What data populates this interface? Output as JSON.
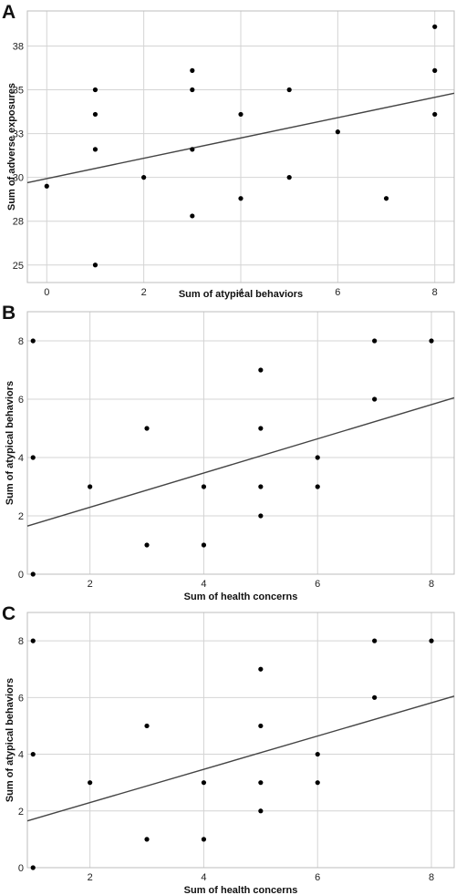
{
  "chart_data": [
    {
      "type": "scatter",
      "panel_label": "A",
      "xlabel": "Sum of atypical behaviors",
      "ylabel": "Sum of adverse exposures",
      "xlim": [
        -0.4,
        8.4
      ],
      "ylim": [
        24,
        39.5
      ],
      "xticks": [
        0,
        2,
        4,
        6,
        8
      ],
      "yticks": [
        25,
        27.5,
        30,
        32.5,
        35,
        37.5
      ],
      "yticklabels": [
        "25",
        "28",
        "30",
        "33",
        "35",
        "38"
      ],
      "grid": "vertical and horizontal",
      "points": [
        {
          "x": 0,
          "y": 29.5
        },
        {
          "x": 1,
          "y": 35
        },
        {
          "x": 1,
          "y": 33.6
        },
        {
          "x": 1,
          "y": 31.6
        },
        {
          "x": 1,
          "y": 25
        },
        {
          "x": 2,
          "y": 30
        },
        {
          "x": 3,
          "y": 36.1
        },
        {
          "x": 3,
          "y": 35
        },
        {
          "x": 3,
          "y": 31.6
        },
        {
          "x": 3,
          "y": 27.8
        },
        {
          "x": 4,
          "y": 33.6
        },
        {
          "x": 4,
          "y": 28.8
        },
        {
          "x": 5,
          "y": 35
        },
        {
          "x": 5,
          "y": 30
        },
        {
          "x": 6,
          "y": 32.6
        },
        {
          "x": 7,
          "y": 28.8
        },
        {
          "x": 8,
          "y": 38.6
        },
        {
          "x": 8,
          "y": 36.1
        },
        {
          "x": 8,
          "y": 33.6
        }
      ],
      "fit_line": {
        "x": [
          -0.4,
          8.4
        ],
        "y": [
          29.7,
          34.8
        ]
      }
    },
    {
      "type": "scatter",
      "panel_label": "B",
      "xlabel": "Sum of health concerns",
      "ylabel": "Sum of atypical behaviors",
      "xlim": [
        0.9,
        8.4
      ],
      "ylim": [
        0,
        9
      ],
      "xticks": [
        2,
        4,
        6,
        8
      ],
      "yticks": [
        0,
        2,
        4,
        6,
        8
      ],
      "yticklabels": [
        "0",
        "2",
        "4",
        "6",
        "8"
      ],
      "grid": "vertical and horizontal",
      "points": [
        {
          "x": 1,
          "y": 8
        },
        {
          "x": 1,
          "y": 4
        },
        {
          "x": 1,
          "y": 0
        },
        {
          "x": 2,
          "y": 3
        },
        {
          "x": 3,
          "y": 5
        },
        {
          "x": 3,
          "y": 1
        },
        {
          "x": 4,
          "y": 3
        },
        {
          "x": 4,
          "y": 1
        },
        {
          "x": 5,
          "y": 7
        },
        {
          "x": 5,
          "y": 5
        },
        {
          "x": 5,
          "y": 3
        },
        {
          "x": 5,
          "y": 2
        },
        {
          "x": 6,
          "y": 4
        },
        {
          "x": 6,
          "y": 3
        },
        {
          "x": 7,
          "y": 8
        },
        {
          "x": 7,
          "y": 6
        },
        {
          "x": 8,
          "y": 8
        }
      ],
      "fit_line": {
        "x": [
          0.9,
          8.4
        ],
        "y": [
          1.65,
          6.05
        ]
      }
    },
    {
      "type": "scatter",
      "panel_label": "C",
      "xlabel": "Sum of health concerns",
      "ylabel": "Sum of atypical behaviors",
      "xlim": [
        0.9,
        8.4
      ],
      "ylim": [
        0,
        9
      ],
      "xticks": [
        2,
        4,
        6,
        8
      ],
      "yticks": [
        0,
        2,
        4,
        6,
        8
      ],
      "yticklabels": [
        "0",
        "2",
        "4",
        "6",
        "8"
      ],
      "grid": "vertical and horizontal",
      "points": [
        {
          "x": 1,
          "y": 8
        },
        {
          "x": 1,
          "y": 4
        },
        {
          "x": 1,
          "y": 0
        },
        {
          "x": 2,
          "y": 3
        },
        {
          "x": 3,
          "y": 5
        },
        {
          "x": 3,
          "y": 1
        },
        {
          "x": 4,
          "y": 3
        },
        {
          "x": 4,
          "y": 1
        },
        {
          "x": 5,
          "y": 7
        },
        {
          "x": 5,
          "y": 5
        },
        {
          "x": 5,
          "y": 3
        },
        {
          "x": 5,
          "y": 2
        },
        {
          "x": 6,
          "y": 4
        },
        {
          "x": 6,
          "y": 3
        },
        {
          "x": 7,
          "y": 8
        },
        {
          "x": 7,
          "y": 6
        },
        {
          "x": 8,
          "y": 8
        }
      ],
      "fit_line": {
        "x": [
          0.9,
          8.4
        ],
        "y": [
          1.65,
          6.05
        ]
      }
    }
  ]
}
